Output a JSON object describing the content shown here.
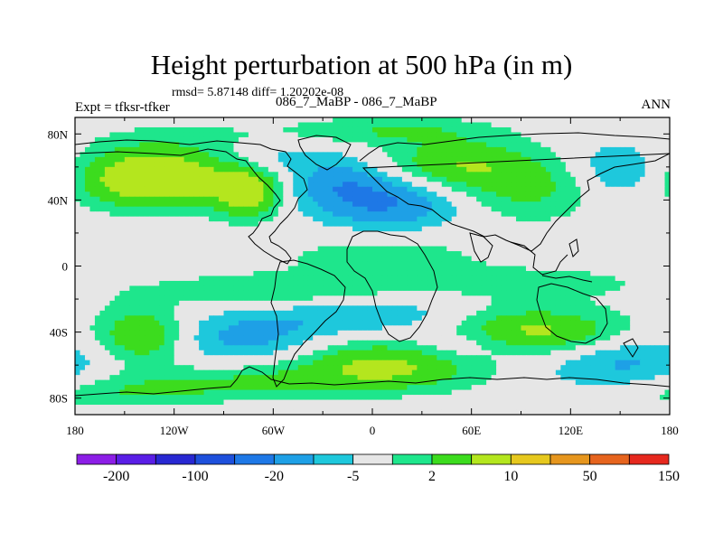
{
  "chart_data": {
    "type": "heatmap",
    "title": "Height perturbation at 500 hPa (in m)",
    "stats_line": "rmsd= 5.87148 diff= 1.20202e-08",
    "left_label": "Expt = tfksr-tfker",
    "center_label": "086_7_MaBP - 086_7_MaBP",
    "right_label": "ANN",
    "x_ticks": [
      "180",
      "120W",
      "60W",
      "0",
      "60E",
      "120E",
      "180"
    ],
    "x_tick_values": [
      -180,
      -120,
      -60,
      0,
      60,
      120,
      180
    ],
    "y_ticks": [
      "80N",
      "40N",
      "0",
      "40S",
      "80S"
    ],
    "y_tick_values": [
      80,
      40,
      0,
      -40,
      -80
    ],
    "xlim": [
      -180,
      180
    ],
    "ylim": [
      -90,
      90
    ],
    "colorbar": {
      "colors": [
        "#8c1ee6",
        "#5a1ee6",
        "#2828d2",
        "#1e50dc",
        "#1e78e6",
        "#1ea0e6",
        "#1ec8dc",
        "#e6e6e6",
        "#1ee68c",
        "#3cdc1e",
        "#b4e61e",
        "#e6c81e",
        "#e6961e",
        "#e6641e",
        "#e6281e"
      ],
      "labels": [
        "-200",
        "-100",
        "-20",
        "-5",
        "2",
        "10",
        "50",
        "150"
      ]
    },
    "fields": [
      {
        "lon": -135,
        "lat": 52,
        "sx": 28,
        "sy": 11,
        "amp": 11
      },
      {
        "lon": -110,
        "lat": 60,
        "sx": 50,
        "sy": 16,
        "amp": 6
      },
      {
        "lon": -75,
        "lat": 44,
        "sx": 14,
        "sy": 10,
        "amp": 11
      },
      {
        "lon": -20,
        "lat": 50,
        "sx": 28,
        "sy": 10,
        "amp": -8
      },
      {
        "lon": 10,
        "lat": 36,
        "sx": 30,
        "sy": 10,
        "amp": -8
      },
      {
        "lon": -60,
        "lat": 66,
        "sx": 30,
        "sy": 7,
        "amp": -5
      },
      {
        "lon": 15,
        "lat": 82,
        "sx": 40,
        "sy": 6,
        "amp": 5
      },
      {
        "lon": 50,
        "lat": 62,
        "sx": 30,
        "sy": 10,
        "amp": 8
      },
      {
        "lon": 95,
        "lat": 48,
        "sx": 30,
        "sy": 14,
        "amp": 6
      },
      {
        "lon": 150,
        "lat": 58,
        "sx": 22,
        "sy": 12,
        "amp": -6
      },
      {
        "lon": 5,
        "lat": 5,
        "sx": 40,
        "sy": 9,
        "amp": 4
      },
      {
        "lon": -60,
        "lat": -15,
        "sx": 50,
        "sy": 7,
        "amp": 5
      },
      {
        "lon": 95,
        "lat": -10,
        "sx": 60,
        "sy": 8,
        "amp": 3
      },
      {
        "lon": -5,
        "lat": -30,
        "sx": 50,
        "sy": 8,
        "amp": -5
      },
      {
        "lon": -140,
        "lat": -42,
        "sx": 18,
        "sy": 12,
        "amp": 9
      },
      {
        "lon": -75,
        "lat": -44,
        "sx": 30,
        "sy": 10,
        "amp": -6
      },
      {
        "lon": 10,
        "lat": -60,
        "sx": 40,
        "sy": 10,
        "amp": 10
      },
      {
        "lon": 95,
        "lat": -40,
        "sx": 40,
        "sy": 10,
        "amp": 11
      },
      {
        "lon": 55,
        "lat": -48,
        "sx": 25,
        "sy": 8,
        "amp": -6
      },
      {
        "lon": 150,
        "lat": -58,
        "sx": 35,
        "sy": 12,
        "amp": -6
      },
      {
        "lon": -80,
        "lat": -70,
        "sx": 60,
        "sy": 7,
        "amp": 5
      },
      {
        "lon": -150,
        "lat": -78,
        "sx": 40,
        "sy": 6,
        "amp": 4
      }
    ]
  }
}
